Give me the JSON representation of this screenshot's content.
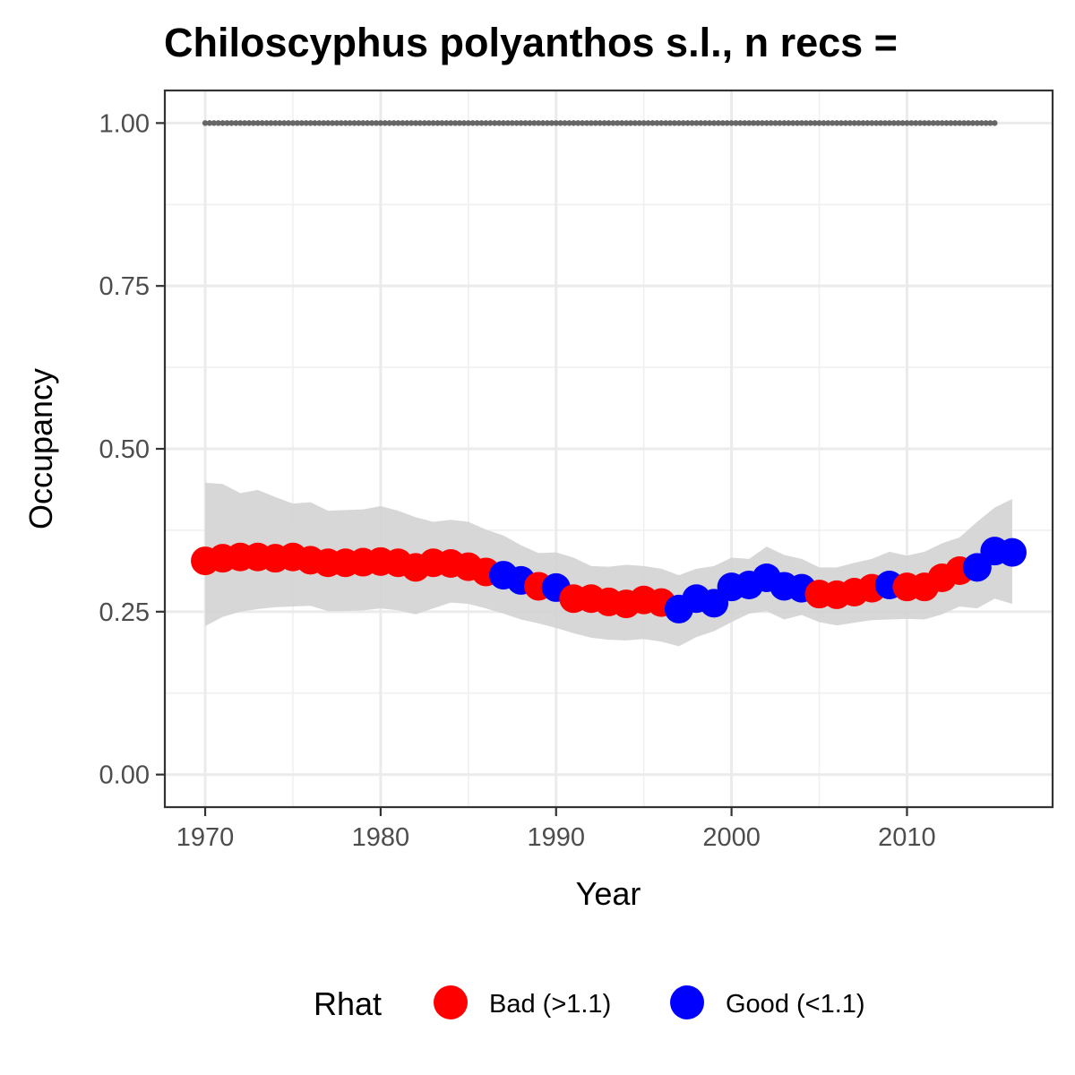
{
  "chart_data": {
    "type": "scatter",
    "title": "Chiloscyphus polyanthos s.l., n recs =",
    "xlabel": "Year",
    "ylabel": "Occupancy",
    "xlim": [
      1967.7,
      2018.3
    ],
    "ylim": [
      -0.05,
      1.05
    ],
    "x_ticks": [
      1970,
      1980,
      1990,
      2000,
      2010
    ],
    "x_tick_labels": [
      "1970",
      "1980",
      "1990",
      "2000",
      "2010"
    ],
    "y_ticks": [
      0,
      0.25,
      0.5,
      0.75,
      1
    ],
    "y_tick_labels": [
      "0.00",
      "0.25",
      "0.50",
      "0.75",
      "1.00"
    ],
    "grid": true,
    "legend_position": "bottom",
    "legend": {
      "title": "Rhat",
      "entries": [
        {
          "label": "Bad (>1.1)",
          "color": "#ff0000"
        },
        {
          "label": "Good (<1.1)",
          "color": "#0000ff"
        }
      ]
    },
    "colors": {
      "bad": "#ff0000",
      "good": "#0000ff",
      "ribbon": "#d3d3d3",
      "reference": "#666666"
    },
    "reference_line": {
      "y": 1.0,
      "x_start": 1970,
      "x_end": 2015,
      "style": "dotted"
    },
    "series": [
      {
        "x": [
          1970,
          1971,
          1972,
          1973,
          1974,
          1975,
          1976,
          1977,
          1978,
          1979,
          1980,
          1981,
          1982,
          1983,
          1984,
          1985,
          1986,
          1987,
          1988,
          1989,
          1990,
          1991,
          1992,
          1993,
          1994,
          1995,
          1996,
          1997,
          1998,
          1999,
          2000,
          2001,
          2002,
          2003,
          2004,
          2005,
          2006,
          2007,
          2008,
          2009,
          2010,
          2011,
          2012,
          2013,
          2014,
          2015,
          2016
        ],
        "y": [
          0.328,
          0.332,
          0.334,
          0.334,
          0.332,
          0.334,
          0.329,
          0.325,
          0.325,
          0.326,
          0.327,
          0.325,
          0.318,
          0.325,
          0.324,
          0.319,
          0.311,
          0.306,
          0.298,
          0.289,
          0.287,
          0.27,
          0.27,
          0.265,
          0.262,
          0.268,
          0.264,
          0.254,
          0.27,
          0.263,
          0.288,
          0.291,
          0.302,
          0.289,
          0.286,
          0.277,
          0.276,
          0.28,
          0.286,
          0.291,
          0.288,
          0.288,
          0.302,
          0.313,
          0.318,
          0.343,
          0.341
        ],
        "lower": [
          0.228,
          0.242,
          0.25,
          0.254,
          0.257,
          0.258,
          0.259,
          0.251,
          0.251,
          0.252,
          0.255,
          0.252,
          0.246,
          0.255,
          0.264,
          0.262,
          0.255,
          0.247,
          0.238,
          0.232,
          0.225,
          0.217,
          0.21,
          0.207,
          0.206,
          0.208,
          0.204,
          0.197,
          0.211,
          0.22,
          0.234,
          0.247,
          0.251,
          0.238,
          0.245,
          0.234,
          0.229,
          0.233,
          0.237,
          0.238,
          0.239,
          0.238,
          0.246,
          0.258,
          0.255,
          0.27,
          0.262
        ],
        "upper": [
          0.448,
          0.446,
          0.432,
          0.437,
          0.426,
          0.416,
          0.418,
          0.405,
          0.406,
          0.407,
          0.412,
          0.405,
          0.395,
          0.388,
          0.391,
          0.388,
          0.376,
          0.367,
          0.352,
          0.34,
          0.341,
          0.333,
          0.32,
          0.319,
          0.322,
          0.32,
          0.316,
          0.306,
          0.316,
          0.32,
          0.333,
          0.331,
          0.35,
          0.337,
          0.331,
          0.318,
          0.318,
          0.325,
          0.331,
          0.342,
          0.336,
          0.342,
          0.355,
          0.364,
          0.388,
          0.41,
          0.423
        ],
        "rhat": [
          "bad",
          "bad",
          "bad",
          "bad",
          "bad",
          "bad",
          "bad",
          "bad",
          "bad",
          "bad",
          "bad",
          "bad",
          "bad",
          "bad",
          "bad",
          "bad",
          "bad",
          "good",
          "good",
          "bad",
          "good",
          "bad",
          "bad",
          "bad",
          "bad",
          "bad",
          "bad",
          "good",
          "good",
          "good",
          "good",
          "good",
          "good",
          "good",
          "good",
          "bad",
          "bad",
          "bad",
          "bad",
          "good",
          "bad",
          "bad",
          "bad",
          "bad",
          "good",
          "good",
          "good"
        ]
      }
    ]
  }
}
